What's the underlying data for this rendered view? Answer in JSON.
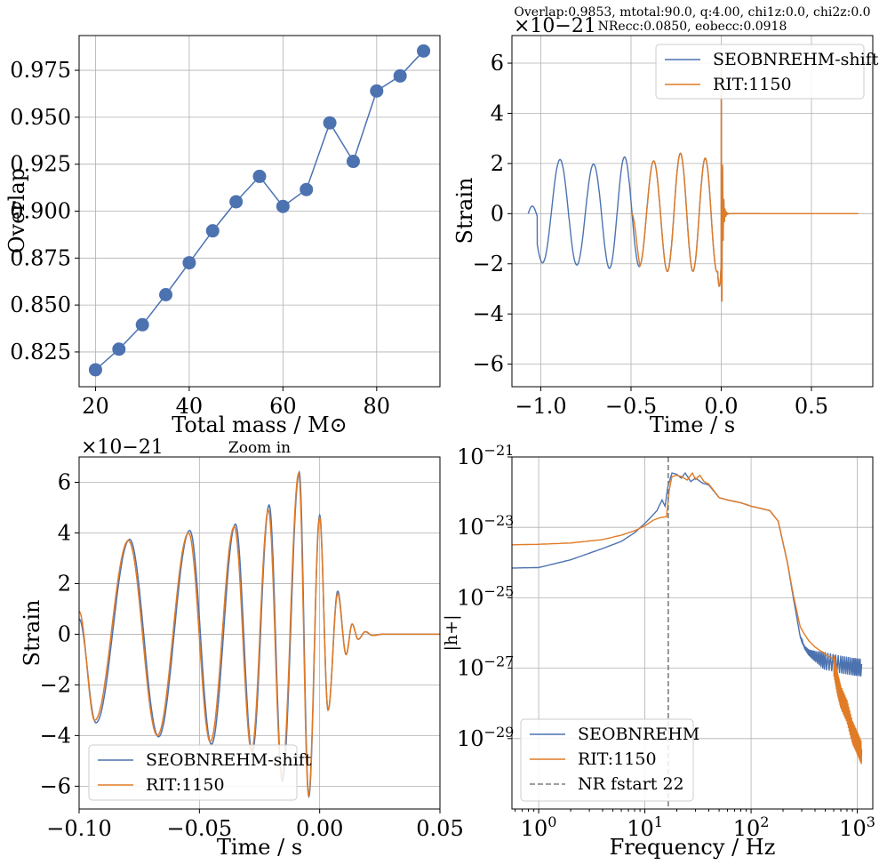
{
  "chart_data": [
    {
      "id": "tl",
      "type": "line",
      "title": "",
      "xlabel": "Total mass / M⊙",
      "ylabel": "Overlap",
      "xlim": [
        16.5,
        93.5
      ],
      "ylim": [
        0.8065,
        0.9935
      ],
      "xticks": [
        20,
        40,
        60,
        80
      ],
      "yticks": [
        0.825,
        0.85,
        0.875,
        0.9,
        0.925,
        0.95,
        0.975
      ],
      "xtick_labels": [
        "20",
        "40",
        "60",
        "80"
      ],
      "ytick_labels": [
        "0.825",
        "0.850",
        "0.875",
        "0.900",
        "0.925",
        "0.950",
        "0.975"
      ],
      "series": [
        {
          "name": "Overlap",
          "color": "#4c72b0",
          "x": [
            20,
            25,
            30,
            35,
            40,
            45,
            50,
            55,
            60,
            65,
            70,
            75,
            80,
            85,
            90
          ],
          "y": [
            0.8155,
            0.8265,
            0.8395,
            0.8555,
            0.8725,
            0.8895,
            0.905,
            0.9185,
            0.9025,
            0.9115,
            0.947,
            0.9265,
            0.964,
            0.972,
            0.9853
          ]
        }
      ]
    },
    {
      "id": "tr",
      "type": "line",
      "title": "Overlap:0.9853, mtotal:90.0, q:4.00, chi1z:0.0, chi2z:0.0",
      "subtitle": "NRecc:0.0850, eobecc:0.0918",
      "xlabel": "Time / s",
      "ylabel": "Strain",
      "offset_label": "×10−21",
      "xlim": [
        -1.16,
        0.84
      ],
      "ylim": [
        -6.9,
        7.1
      ],
      "xticks": [
        -1.0,
        -0.5,
        0.0,
        0.5
      ],
      "yticks": [
        -6,
        -4,
        -2,
        0,
        2,
        4,
        6
      ],
      "xtick_labels": [
        "−1.0",
        "−0.5",
        "0.0",
        "0.5"
      ],
      "ytick_labels": [
        "−6",
        "−4",
        "−2",
        "0",
        "2",
        "4",
        "6"
      ],
      "legend": "top-right",
      "series": [
        {
          "name": "SEOBNREHM-shift",
          "color": "#4c72b0",
          "t_start": -1.07,
          "t_end": 0.22,
          "merger": 0.0
        },
        {
          "name": "RIT:1150",
          "color": "#e07b26",
          "t_start": -0.5,
          "t_end": 0.76,
          "merger": 0.0
        }
      ]
    },
    {
      "id": "bl",
      "type": "line",
      "title": "Zoom in",
      "xlabel": "Time / s",
      "ylabel": "Strain",
      "offset_label": "×10−21",
      "xlim": [
        -0.1,
        0.05
      ],
      "ylim": [
        -6.9,
        7.0
      ],
      "xticks": [
        -0.1,
        -0.05,
        0.0,
        0.05
      ],
      "yticks": [
        -6,
        -4,
        -2,
        0,
        2,
        4,
        6
      ],
      "xtick_labels": [
        "−0.10",
        "−0.05",
        "0.00",
        "0.05"
      ],
      "ytick_labels": [
        "−6",
        "−4",
        "−2",
        "0",
        "2",
        "4",
        "6"
      ],
      "legend": "bottom-left",
      "series": [
        {
          "name": "SEOBNREHM-shift",
          "color": "#4c72b0",
          "peaks_t": [
            -0.1,
            -0.093,
            -0.079,
            -0.067,
            -0.054,
            -0.045,
            -0.035,
            -0.028,
            -0.021,
            -0.0155,
            -0.0085,
            -0.0045,
            0.0,
            0.0035,
            0.0075,
            0.011,
            0.0135,
            0.016,
            0.019,
            0.022,
            0.026,
            0.05
          ],
          "peaks_v": [
            0.6,
            -3.5,
            3.75,
            -4.05,
            4.1,
            -4.35,
            4.35,
            -4.65,
            5.1,
            -5.8,
            6.4,
            -6.4,
            4.7,
            -3.0,
            1.7,
            -0.8,
            0.4,
            -0.2,
            0.1,
            -0.05,
            0.0,
            0.0
          ]
        },
        {
          "name": "RIT:1150",
          "color": "#e07b26",
          "peaks_t": [
            -0.1,
            -0.0935,
            -0.0795,
            -0.0675,
            -0.0545,
            -0.0455,
            -0.0355,
            -0.0283,
            -0.0213,
            -0.0157,
            -0.0087,
            -0.0046,
            0.0,
            0.0035,
            0.0075,
            0.011,
            0.0135,
            0.016,
            0.019,
            0.022,
            0.026,
            0.05
          ],
          "peaks_v": [
            0.9,
            -3.4,
            3.7,
            -4.0,
            4.0,
            -4.25,
            4.25,
            -4.6,
            4.9,
            -5.6,
            6.35,
            -6.35,
            4.6,
            -3.0,
            1.6,
            -0.8,
            0.4,
            -0.2,
            0.1,
            -0.05,
            0.0,
            0.0
          ]
        }
      ]
    },
    {
      "id": "br",
      "type": "line",
      "scale": "log-log",
      "xlabel": "Frequency / Hz",
      "ylabel": "|h+|",
      "xlim": [
        0.56,
        1400
      ],
      "ylim": [
        1e-31,
        1e-21
      ],
      "xticks": [
        1,
        10,
        100,
        1000
      ],
      "yticks": [
        1e-29,
        1e-27,
        1e-25,
        1e-23,
        1e-21
      ],
      "xtick_labels": [
        "10",
        "10",
        "10",
        "10"
      ],
      "xtick_exps": [
        "0",
        "1",
        "2",
        "3"
      ],
      "ytick_labels": [
        "10",
        "10",
        "10",
        "10",
        "10"
      ],
      "ytick_exps": [
        "−29",
        "−27",
        "−25",
        "−23",
        "−21"
      ],
      "legend": "bottom-left",
      "vline": {
        "x": 16.6,
        "name": "NR fstart 22",
        "color": "#7f7f7f"
      },
      "series": [
        {
          "name": "SEOBNREHM",
          "color": "#4c72b0",
          "f": [
            0.56,
            1.0,
            2.0,
            4.0,
            6.0,
            8.0,
            10,
            11.5,
            13,
            14.5,
            15.5,
            16.5,
            18,
            20,
            22,
            24,
            27,
            30,
            35,
            40,
            50,
            60,
            80,
            100,
            150,
            180,
            220,
            250,
            290,
            320,
            350,
            400,
            500,
            700,
            900,
            1100
          ],
          "v": [
            7e-25,
            7.2e-25,
            1.2e-24,
            2.5e-24,
            4e-24,
            7e-24,
            1.3e-23,
            2e-23,
            3e-23,
            6e-23,
            4e-23,
            1.5e-22,
            3.5e-22,
            3.2e-22,
            2.5e-22,
            3.5e-22,
            2e-22,
            2.5e-22,
            1.8e-22,
            1.6e-22,
            7e-23,
            6e-23,
            5e-23,
            4e-23,
            3e-23,
            1.5e-23,
            1e-24,
            1e-25,
            8e-27,
            4e-27,
            3e-27,
            2.5e-27,
            2e-27,
            1.6e-27,
            1.4e-27,
            1.3e-27
          ]
        },
        {
          "name": "RIT:1150",
          "color": "#e07b26",
          "f": [
            0.56,
            1.0,
            2.0,
            4.0,
            6.0,
            8.0,
            10,
            12,
            14,
            16,
            17,
            18,
            20,
            22,
            25,
            28,
            30,
            33,
            36,
            40,
            50,
            60,
            80,
            100,
            150,
            180,
            220,
            250,
            290,
            320,
            350,
            400,
            500,
            600,
            650,
            700,
            800,
            900,
            1000,
            1100
          ],
          "v": [
            3.2e-24,
            3.3e-24,
            3.6e-24,
            4.5e-24,
            6e-24,
            8e-24,
            1.1e-23,
            1.6e-23,
            1.9e-23,
            2e-23,
            1.2e-22,
            2.8e-22,
            3e-22,
            2.8e-22,
            2.2e-22,
            3.5e-22,
            2.3e-22,
            3e-22,
            2e-22,
            1.7e-22,
            7e-23,
            6e-23,
            5e-23,
            4e-23,
            3e-23,
            1.5e-23,
            1e-24,
            1.2e-25,
            1.5e-26,
            9e-27,
            6e-27,
            4e-27,
            2.5e-27,
            1.8e-27,
            5e-28,
            2e-28,
            8e-29,
            2e-29,
            1e-29,
            5e-30
          ]
        }
      ]
    }
  ]
}
